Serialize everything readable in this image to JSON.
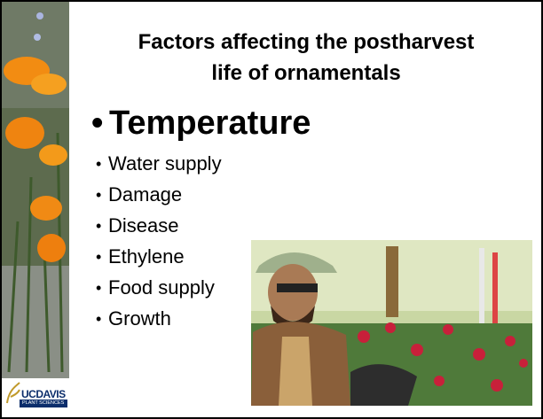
{
  "slide": {
    "title_lines": [
      "Factors affecting the postharvest",
      "life of ornamentals"
    ],
    "main_bullet": "Temperature",
    "bullets": [
      "Water supply",
      "Damage",
      "Disease",
      "Ethylene",
      "Food supply",
      "Growth"
    ],
    "logo": {
      "name": "UCDAVIS",
      "department": "PLANT SCIENCES"
    }
  }
}
